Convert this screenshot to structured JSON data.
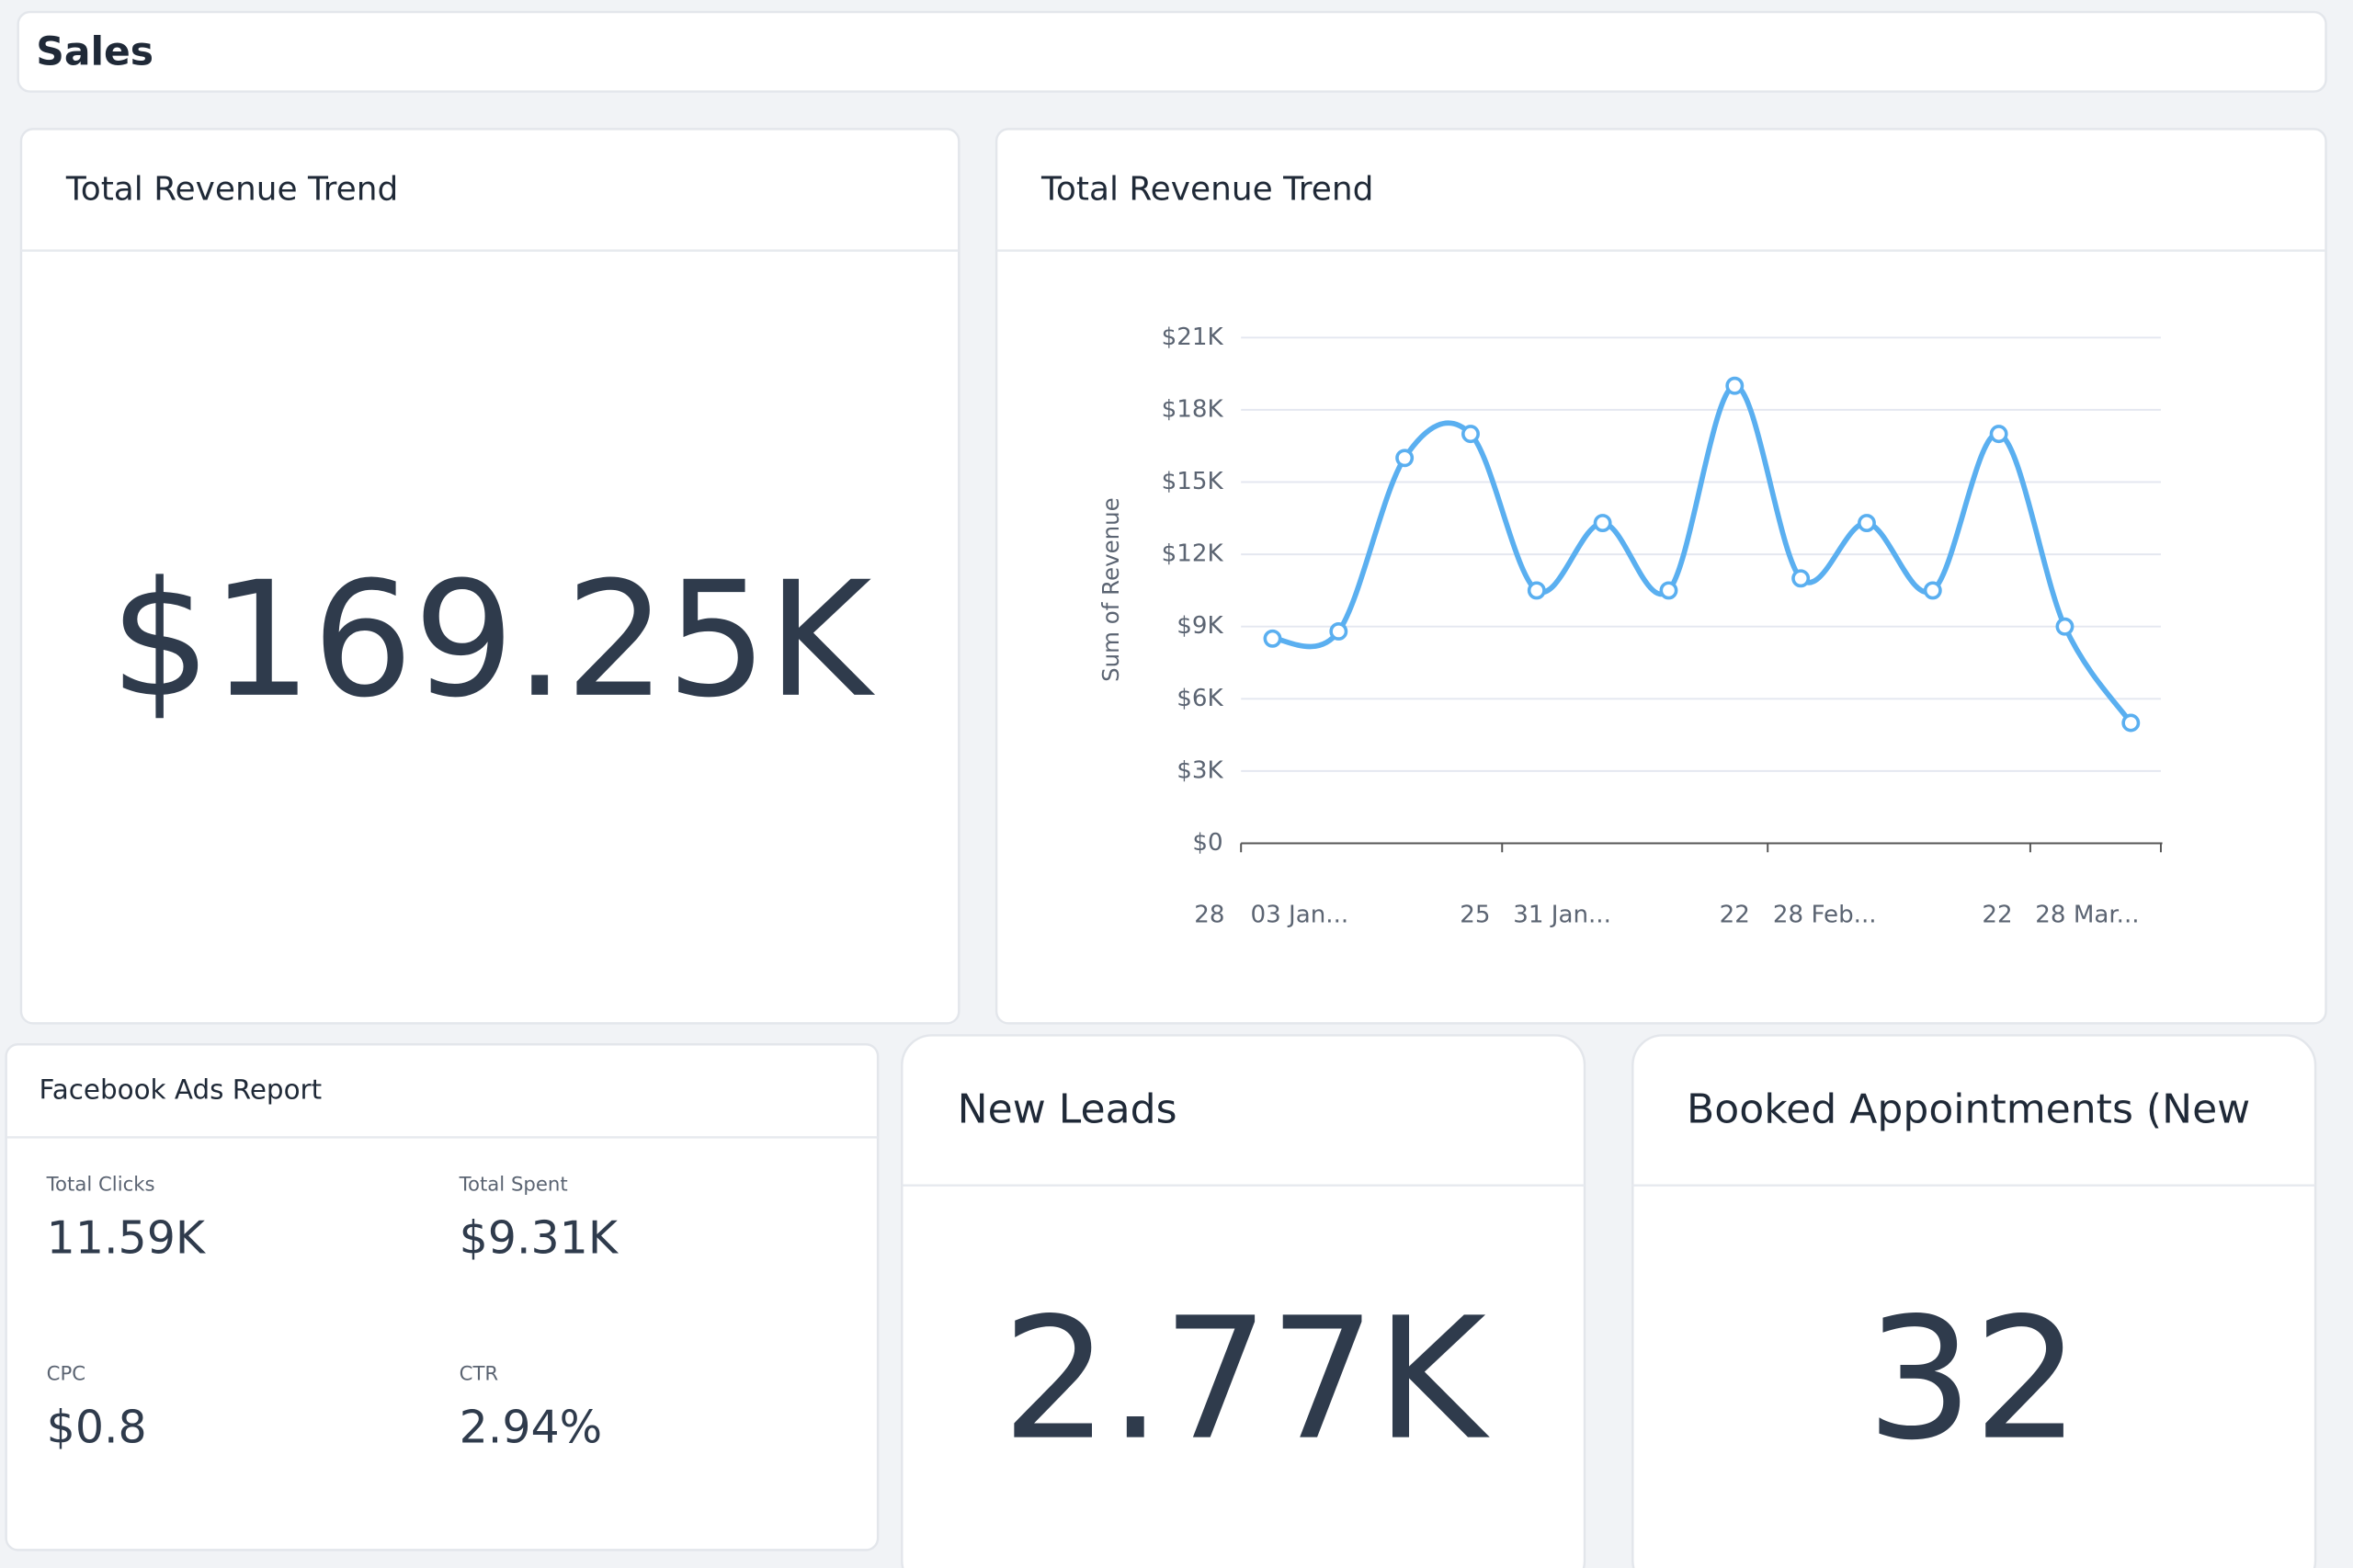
{
  "header": {
    "title": "Sales"
  },
  "revenue_total": {
    "title": "Total Revenue Trend",
    "value": "$169.25K"
  },
  "revenue_chart": {
    "type": "line",
    "title": "Total Revenue Trend",
    "y_label": "Sum of Revenue",
    "x_labels": [
      "28",
      "03 Jan...",
      "25",
      "31 Jan...",
      "22",
      "28 Feb...",
      "22",
      "28 Mar..."
    ],
    "values": [
      8500,
      8800,
      16000,
      17000,
      10500,
      13300,
      10500,
      19000,
      11000,
      13300,
      10500,
      17000,
      9000,
      5000
    ],
    "color": "#5aaff0",
    "ylim": [
      0,
      21000
    ],
    "yticks": [
      {
        "value": 0,
        "label": "$0"
      },
      {
        "value": 3000,
        "label": "$3K"
      },
      {
        "value": 6000,
        "label": "$6K"
      },
      {
        "value": 9000,
        "label": "$9K"
      },
      {
        "value": 12000,
        "label": "$12K"
      },
      {
        "value": 15000,
        "label": "$15K"
      },
      {
        "value": 18000,
        "label": "$18K"
      },
      {
        "value": 21000,
        "label": "$21K"
      }
    ],
    "grid": true
  },
  "facebook_ads": {
    "title": "Facebook Ads Report",
    "metrics": [
      {
        "label": "Total Clicks",
        "value": "11.59K"
      },
      {
        "label": "Total Spent",
        "value": "$9.31K"
      },
      {
        "label": "CPC",
        "value": "$0.8"
      },
      {
        "label": "CTR",
        "value": "2.94%"
      }
    ]
  },
  "new_leads": {
    "title": "New Leads",
    "value": "2.77K"
  },
  "booked_appointments": {
    "title": "Booked Appointments (New",
    "value": "32"
  }
}
